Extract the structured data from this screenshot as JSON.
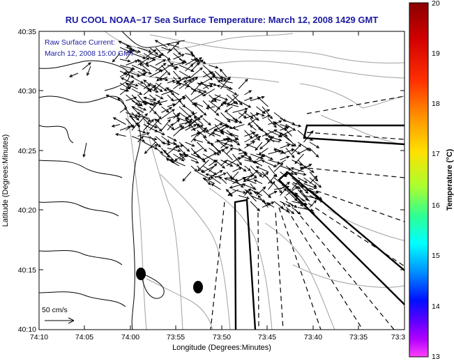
{
  "chart_data": {
    "type": "vector-field-map",
    "title": "RU COOL  NOAA−17  Sea Surface Temperature:  March 12, 2008 1429 GMT",
    "annotation_line1": "Raw Surface Current:",
    "annotation_line2": "March 12, 2008 15:00 GMT",
    "xlabel": "Longitude (Degrees:Minutes)",
    "ylabel": "Latitude (Degrees:Minutes)",
    "x_ticks": [
      "74:10",
      "74:05",
      "74:00",
      "73:55",
      "73:50",
      "73:45",
      "73:40",
      "73:35",
      "73:3"
    ],
    "y_ticks": [
      "40:35",
      "40:30",
      "40:25",
      "40:20",
      "40:15",
      "40:10"
    ],
    "xlim_minutes_west": [
      70,
      30
    ],
    "ylim_minutes_north": [
      10,
      35
    ],
    "scale_label": "50 cm/s",
    "colorbar": {
      "label": "Temperature (°C)",
      "ticks": [
        "20",
        "19",
        "18",
        "17",
        "16",
        "15",
        "14",
        "13"
      ],
      "min": 13,
      "max": 20
    },
    "markers": [
      {
        "lon_min_w": 58.9,
        "lat_min_n": 14.5
      },
      {
        "lon_min_w": 52.2,
        "lat_min_n": 13.6
      }
    ]
  }
}
